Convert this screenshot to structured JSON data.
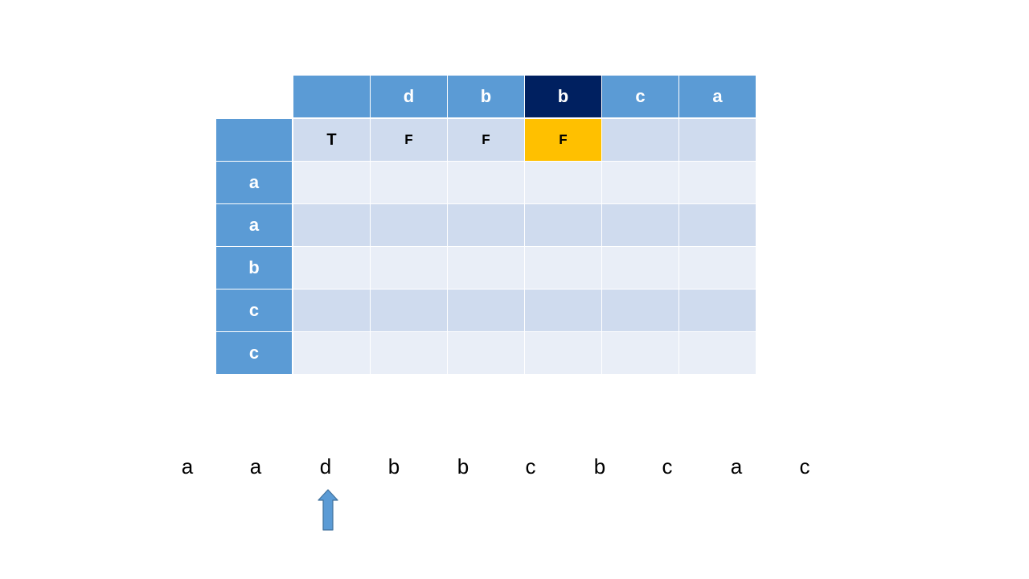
{
  "table": {
    "corner_label": "",
    "column_headers": [
      "",
      "d",
      "b",
      "b",
      "c",
      "a"
    ],
    "highlight_column": 3,
    "row_headers": [
      "",
      "a",
      "a",
      "b",
      "c",
      "c"
    ],
    "cells": [
      [
        "T",
        "F",
        "F",
        "F",
        "",
        ""
      ],
      [
        "",
        "",
        "",
        "",
        "",
        ""
      ],
      [
        "",
        "",
        "",
        "",
        "",
        ""
      ],
      [
        "",
        "",
        "",
        "",
        "",
        ""
      ],
      [
        "",
        "",
        "",
        "",
        "",
        ""
      ],
      [
        "",
        "",
        "",
        "",
        "",
        ""
      ]
    ],
    "highlight_cell": [
      0,
      3
    ],
    "colors": {
      "header": "#5b9bd5",
      "header_highlight": "#002060",
      "band_dark": "#cfdbee",
      "band_light": "#e9eef7",
      "cell_highlight": "#ffc000"
    }
  },
  "sequence": {
    "chars": [
      "a",
      "a",
      "d",
      "b",
      "b",
      "c",
      "b",
      "c",
      "a",
      "c"
    ],
    "pointer_index": 2,
    "pointer_icon": "up-arrow-icon",
    "pointer_color": "#5b9bd5"
  }
}
